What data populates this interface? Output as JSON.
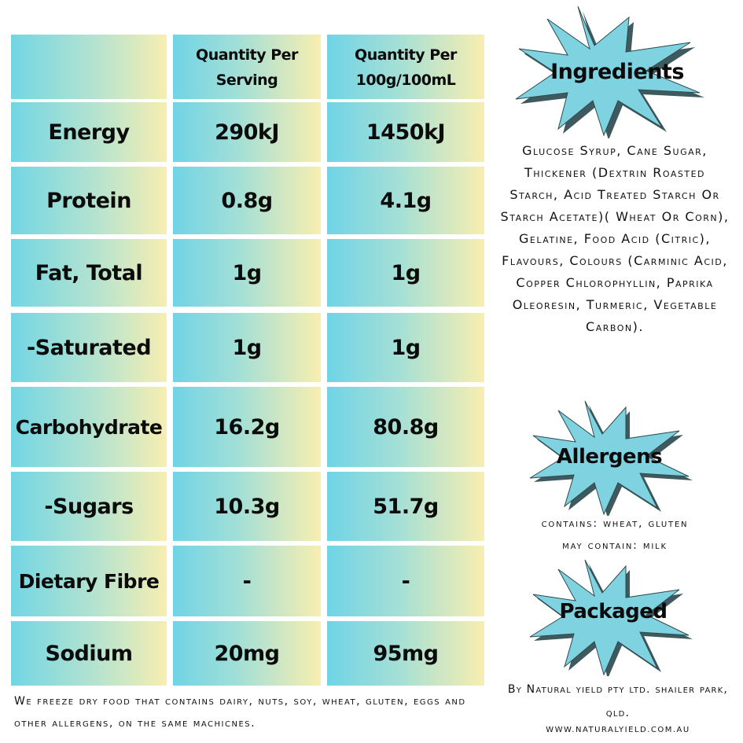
{
  "table": {
    "headers": [
      "",
      "Quantity Per\nServing",
      "Quantity Per\n100g/100mL"
    ],
    "rows": [
      {
        "label": "Energy",
        "per_serving": "290kJ",
        "per_100": "1450kJ"
      },
      {
        "label": "Protein",
        "per_serving": "0.8g",
        "per_100": "4.1g"
      },
      {
        "label": "Fat, Total",
        "per_serving": "1g",
        "per_100": "1g"
      },
      {
        "label": "-Saturated",
        "per_serving": "1g",
        "per_100": "1g"
      },
      {
        "label": "Carbohydrate",
        "per_serving": "16.2g",
        "per_100": "80.8g"
      },
      {
        "label": "-Sugars",
        "per_serving": "10.3g",
        "per_100": "51.7g"
      },
      {
        "label": "Dietary Fibre",
        "per_serving": "-",
        "per_100": "-"
      },
      {
        "label": "Sodium",
        "per_serving": "20mg",
        "per_100": "95mg"
      }
    ]
  },
  "ingredients": {
    "title": "Ingredients",
    "text": "Glucose Syrup, Cane Sugar, Thickener (Dextrin Roasted Starch, Acid Treated Starch Or Starch Acetate)( Wheat Or Corn), Gelatine, Food Acid (Citric), Flavours, Colours (Carminic Acid, Copper Chlorophyllin, Paprika Oleoresin, Turmeric, Vegetable Carbon)."
  },
  "allergens": {
    "title": "Allergens",
    "contains": "contains: wheat, gluten",
    "may_contain": "may contain: milk"
  },
  "packaged": {
    "title": "Packaged",
    "text": "By Natural yield pty ltd.  shailer park, qld.",
    "website": "WWW.NATURALYIELD.COM.AU"
  },
  "footnote": "We freeze dry food that contains dairy, nuts, soy, wheat, gluten, eggs and other allergens, on the same machicnes.",
  "colors": {
    "cyan": "#72d6e4",
    "yellow": "#f7eeb1",
    "star_fill": "#7fd3e1",
    "star_shadow": "#3e5a5e"
  }
}
